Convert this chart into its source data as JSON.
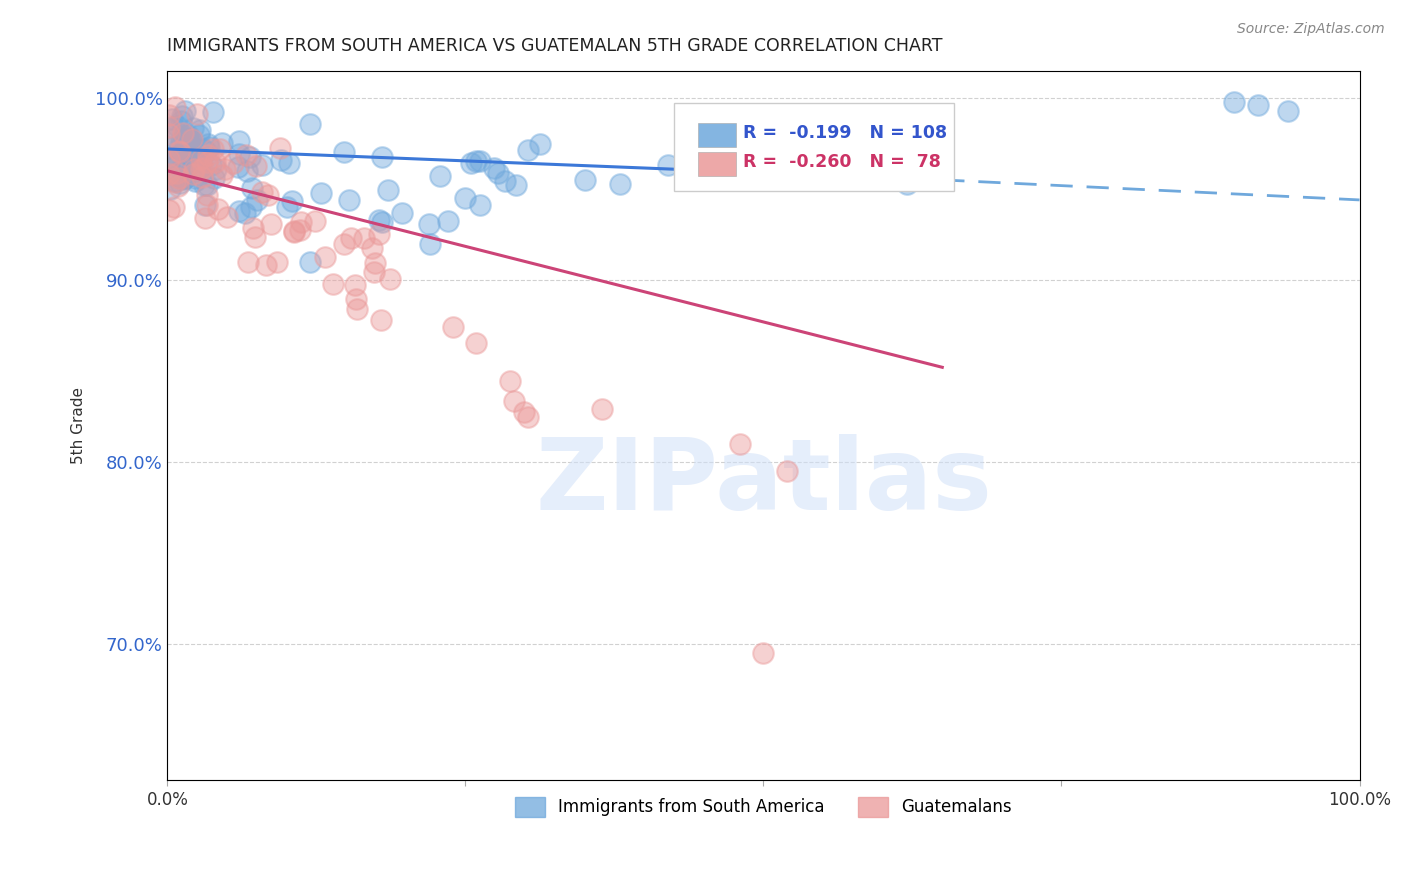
{
  "title": "IMMIGRANTS FROM SOUTH AMERICA VS GUATEMALAN 5TH GRADE CORRELATION CHART",
  "source": "Source: ZipAtlas.com",
  "ylabel": "5th Grade",
  "xlim": [
    0.0,
    1.0
  ],
  "ylim": [
    0.625,
    1.015
  ],
  "yticks": [
    0.7,
    0.8,
    0.9,
    1.0
  ],
  "ytick_labels": [
    "70.0%",
    "80.0%",
    "90.0%",
    "100.0%"
  ],
  "xtick_labels": [
    "0.0%",
    "100.0%"
  ],
  "blue_R": "-0.199",
  "blue_N": "108",
  "pink_R": "-0.260",
  "pink_N": "78",
  "blue_color": "#6fa8dc",
  "pink_color": "#ea9999",
  "blue_line_color": "#3c78d8",
  "pink_line_color": "#cc4477",
  "watermark": "ZIPatlas",
  "trendline_blue_x0": 0.0,
  "trendline_blue_y0": 0.972,
  "trendline_blue_x1": 0.65,
  "trendline_blue_y1": 0.955,
  "trendline_blue_dash_x1": 1.0,
  "trendline_blue_dash_y1": 0.944,
  "trendline_pink_x0": 0.0,
  "trendline_pink_y0": 0.96,
  "trendline_pink_x1": 0.65,
  "trendline_pink_y1": 0.852
}
